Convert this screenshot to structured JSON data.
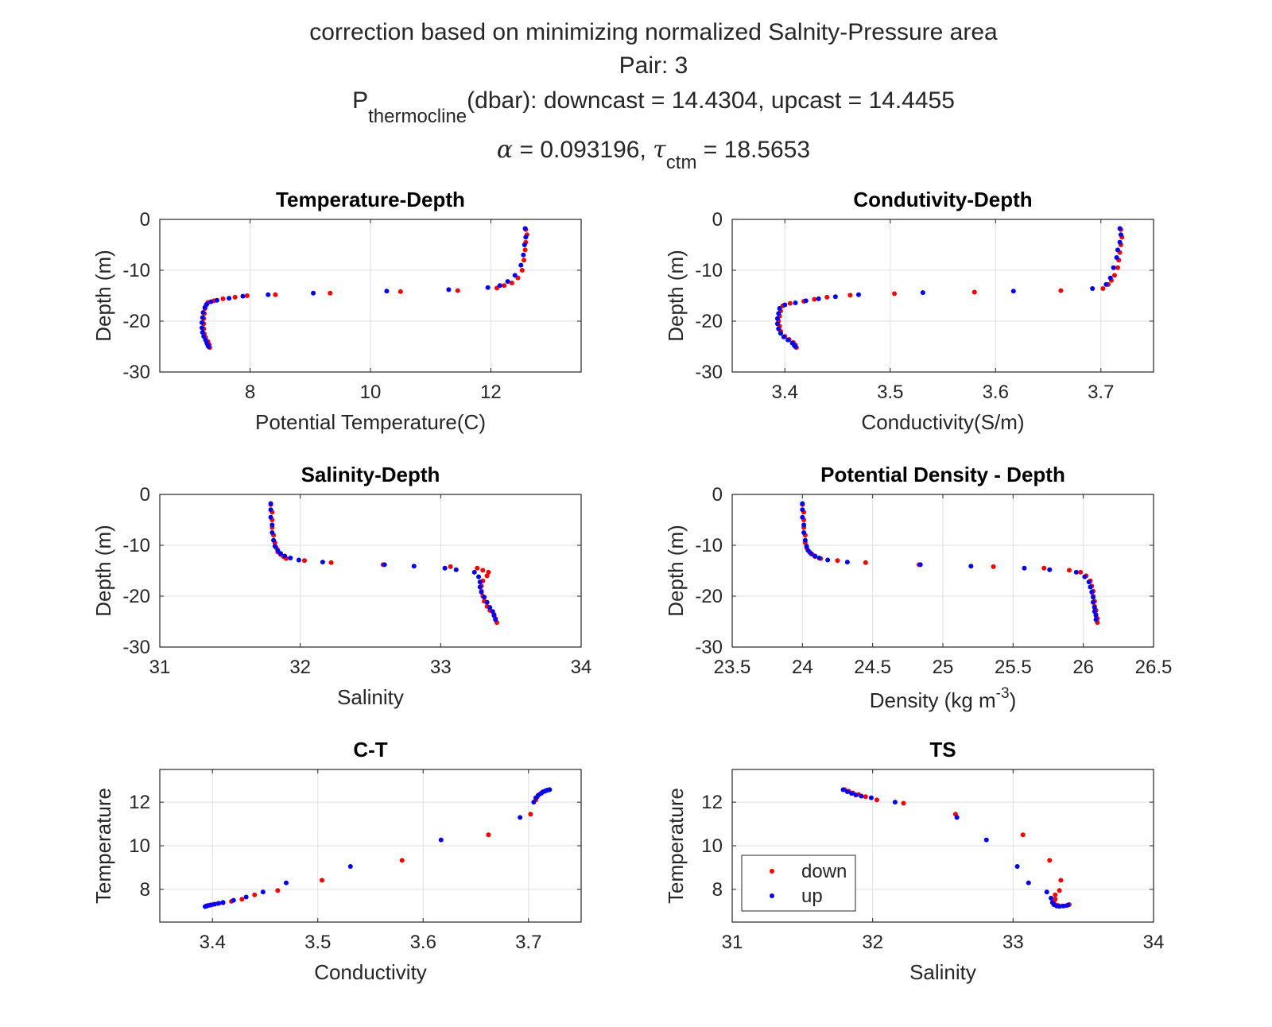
{
  "figure": {
    "title_line1": "correction based on minimizing normalized Salnity-Pressure area",
    "title_line2": "Pair: 3",
    "title_line3": {
      "p": "P",
      "sub": "thermocline",
      "rest": "(dbar): downcast = 14.4304, upcast = 14.4455"
    },
    "title_line4": {
      "alpha": "α",
      "alpha_rest": " = 0.093196, ",
      "tau": "τ",
      "tau_sub": "ctm",
      "tau_rest": " = 18.5653"
    }
  },
  "colors": {
    "down": "#ff0000",
    "up": "#0000ff",
    "grid": "#dfdfdf",
    "axis": "#262626"
  },
  "chart_data": [
    {
      "id": "temp",
      "type": "scatter",
      "title": "Temperature-Depth",
      "xlabel": "Potential Temperature(C)",
      "ylabel": "Depth (m)",
      "xlim": [
        6.5,
        13.5
      ],
      "ylim": [
        -30,
        0
      ],
      "xticks": [
        8,
        10,
        12
      ],
      "xticklabels": [
        "8",
        "10",
        "12"
      ],
      "yticks": [
        -30,
        -20,
        -10,
        0
      ],
      "yticklabels": [
        "-30",
        "-20",
        "-10",
        "0"
      ],
      "series": [
        {
          "name": "down",
          "x": [
            12.58,
            12.6,
            12.58,
            12.57,
            12.55,
            12.52,
            12.45,
            12.35,
            12.22,
            12.1,
            11.45,
            10.5,
            9.33,
            8.42,
            7.95,
            7.75,
            7.55,
            7.4,
            7.3,
            7.27,
            7.25,
            7.24,
            7.23,
            7.23,
            7.23,
            7.24,
            7.26,
            7.3,
            7.32,
            7.33
          ],
          "y": [
            -2,
            -3,
            -4.5,
            -6,
            -8,
            -10,
            -11.5,
            -12.5,
            -13,
            -13.5,
            -14,
            -14.2,
            -14.5,
            -14.8,
            -15,
            -15.3,
            -15.6,
            -16,
            -16.3,
            -16.8,
            -17.5,
            -18.5,
            -19.5,
            -20.5,
            -21.5,
            -22.5,
            -23.2,
            -24,
            -24.6,
            -25.2
          ]
        },
        {
          "name": "up",
          "x": [
            12.57,
            12.58,
            12.56,
            12.54,
            12.5,
            12.4,
            12.28,
            12.15,
            11.95,
            11.3,
            10.27,
            9.05,
            8.3,
            7.88,
            7.65,
            7.45,
            7.35,
            7.28,
            7.25,
            7.22,
            7.21,
            7.2,
            7.2,
            7.21,
            7.23,
            7.26,
            7.28,
            7.3,
            7.31
          ],
          "y": [
            -1.8,
            -3.5,
            -5,
            -7,
            -9,
            -11,
            -12.2,
            -13,
            -13.4,
            -13.8,
            -14.1,
            -14.5,
            -14.8,
            -15.1,
            -15.5,
            -15.9,
            -16.2,
            -16.7,
            -17.3,
            -18.3,
            -19.3,
            -20.3,
            -21.3,
            -22.2,
            -23,
            -23.7,
            -24.3,
            -24.8,
            -25
          ]
        }
      ]
    },
    {
      "id": "cond",
      "type": "scatter",
      "title": "Condutivity-Depth",
      "xlabel": "Conductivity(S/m)",
      "ylabel": "Depth (m)",
      "xlim": [
        3.35,
        3.75
      ],
      "ylim": [
        -30,
        0
      ],
      "xticks": [
        3.4,
        3.5,
        3.6,
        3.7
      ],
      "xticklabels": [
        "3.4",
        "3.5",
        "3.6",
        "3.7"
      ],
      "yticks": [
        -30,
        -20,
        -10,
        0
      ],
      "yticklabels": [
        "-30",
        "-20",
        "-10",
        "0"
      ],
      "series": [
        {
          "name": "down",
          "x": [
            3.719,
            3.72,
            3.719,
            3.718,
            3.717,
            3.716,
            3.713,
            3.71,
            3.707,
            3.702,
            3.662,
            3.58,
            3.504,
            3.462,
            3.44,
            3.428,
            3.418,
            3.405,
            3.398,
            3.396,
            3.395,
            3.394,
            3.395,
            3.396,
            3.4,
            3.404,
            3.408,
            3.41,
            3.411
          ],
          "y": [
            -2,
            -3.5,
            -5,
            -6.5,
            -8,
            -9.5,
            -11,
            -12,
            -12.8,
            -13.6,
            -14,
            -14.3,
            -14.6,
            -14.9,
            -15.3,
            -15.7,
            -16.1,
            -16.5,
            -17,
            -18,
            -19,
            -20,
            -21,
            -22,
            -23,
            -23.6,
            -24.2,
            -24.7,
            -25.2
          ]
        },
        {
          "name": "up",
          "x": [
            3.718,
            3.719,
            3.718,
            3.716,
            3.715,
            3.712,
            3.709,
            3.705,
            3.692,
            3.617,
            3.531,
            3.47,
            3.448,
            3.432,
            3.42,
            3.41,
            3.4,
            3.395,
            3.394,
            3.393,
            3.393,
            3.394,
            3.396,
            3.399,
            3.403,
            3.407,
            3.409,
            3.41
          ],
          "y": [
            -1.8,
            -3,
            -4.5,
            -6,
            -7.5,
            -9.5,
            -11.5,
            -12.8,
            -13.6,
            -14.1,
            -14.4,
            -14.8,
            -15.2,
            -15.6,
            -16,
            -16.4,
            -16.8,
            -17.5,
            -18.5,
            -19.5,
            -20.5,
            -21.5,
            -22.4,
            -23.1,
            -23.7,
            -24.3,
            -24.8,
            -25
          ]
        }
      ]
    },
    {
      "id": "sal",
      "type": "scatter",
      "title": "Salinity-Depth",
      "xlabel": "Salinity",
      "ylabel": "Depth (m)",
      "xlim": [
        31,
        34
      ],
      "ylim": [
        -30,
        0
      ],
      "xticks": [
        31,
        32,
        33,
        34
      ],
      "xticklabels": [
        "31",
        "32",
        "33",
        "34"
      ],
      "yticks": [
        -30,
        -20,
        -10,
        0
      ],
      "yticklabels": [
        "-30",
        "-20",
        "-10",
        "0"
      ],
      "series": [
        {
          "name": "down",
          "x": [
            31.79,
            31.8,
            31.8,
            31.8,
            31.81,
            31.82,
            31.83,
            31.84,
            31.86,
            31.88,
            31.9,
            32.03,
            32.22,
            32.59,
            33.07,
            33.26,
            33.3,
            33.34,
            33.33,
            33.3,
            33.29,
            33.29,
            33.3,
            33.31,
            33.33,
            33.35,
            33.38,
            33.39,
            33.4
          ],
          "y": [
            -2,
            -3.5,
            -5,
            -6.5,
            -8,
            -9.5,
            -10.5,
            -11.3,
            -11.8,
            -12.2,
            -12.6,
            -13,
            -13.4,
            -13.8,
            -14.2,
            -14.5,
            -14.9,
            -15.3,
            -16,
            -17,
            -18,
            -19,
            -20,
            -21,
            -22,
            -22.8,
            -23.6,
            -24.4,
            -25.2
          ]
        },
        {
          "name": "up",
          "x": [
            31.79,
            31.79,
            31.79,
            31.8,
            31.8,
            31.81,
            31.82,
            31.84,
            31.86,
            31.89,
            31.93,
            31.99,
            32.16,
            32.6,
            32.81,
            33.03,
            33.11,
            33.24,
            33.27,
            33.28,
            33.28,
            33.29,
            33.31,
            33.33,
            33.35,
            33.37,
            33.38,
            33.39
          ],
          "y": [
            -1.8,
            -3,
            -4.5,
            -6,
            -7.5,
            -9,
            -10.2,
            -11,
            -11.6,
            -12.1,
            -12.5,
            -12.9,
            -13.3,
            -13.8,
            -14.1,
            -14.5,
            -14.8,
            -15.3,
            -16.2,
            -17.2,
            -18.2,
            -19.2,
            -20.2,
            -21.2,
            -22.2,
            -23,
            -23.8,
            -24.6
          ]
        }
      ]
    },
    {
      "id": "dens",
      "type": "scatter",
      "title": "Potential Density - Depth",
      "xlabel_main": "Density (kg m",
      "xlabel_sup": "-3",
      "xlabel_end": ")",
      "ylabel": "Depth (m)",
      "xlim": [
        23.5,
        26.5
      ],
      "ylim": [
        -30,
        0
      ],
      "xticks": [
        23.5,
        24,
        24.5,
        25,
        25.5,
        26,
        26.5
      ],
      "xticklabels": [
        "23.5",
        "24",
        "24.5",
        "25",
        "25.5",
        "26",
        "26.5"
      ],
      "yticks": [
        -30,
        -20,
        -10,
        0
      ],
      "yticklabels": [
        "-30",
        "-20",
        "-10",
        "0"
      ],
      "series": [
        {
          "name": "down",
          "x": [
            24,
            24.01,
            24.01,
            24.01,
            24.02,
            24.02,
            24.03,
            24.05,
            24.07,
            24.09,
            24.13,
            24.25,
            24.45,
            24.83,
            25.36,
            25.72,
            25.9,
            25.98,
            26.02,
            26.05,
            26.06,
            26.07,
            26.07,
            26.08,
            26.08,
            26.09,
            26.09,
            26.1,
            26.1
          ],
          "y": [
            -2,
            -3.5,
            -5,
            -6.5,
            -8,
            -9.5,
            -10.5,
            -11.3,
            -11.8,
            -12.2,
            -12.6,
            -13,
            -13.4,
            -13.8,
            -14.2,
            -14.5,
            -14.9,
            -15.3,
            -16,
            -17,
            -18,
            -19,
            -20,
            -21,
            -22,
            -22.8,
            -23.6,
            -24.4,
            -25.2
          ]
        },
        {
          "name": "up",
          "x": [
            24,
            24,
            24,
            24.01,
            24.01,
            24.02,
            24.03,
            24.04,
            24.06,
            24.09,
            24.12,
            24.18,
            24.32,
            24.84,
            25.2,
            25.58,
            25.76,
            25.95,
            26.01,
            26.04,
            26.05,
            26.06,
            26.07,
            26.07,
            26.08,
            26.08,
            26.09,
            26.09
          ],
          "y": [
            -1.8,
            -3,
            -4.5,
            -6,
            -7.5,
            -9,
            -10.2,
            -11,
            -11.6,
            -12.1,
            -12.5,
            -12.9,
            -13.3,
            -13.8,
            -14.1,
            -14.5,
            -14.8,
            -15.3,
            -16.2,
            -17.2,
            -18.2,
            -19.2,
            -20.2,
            -21.2,
            -22.2,
            -23,
            -23.8,
            -24.6
          ]
        }
      ]
    },
    {
      "id": "ct",
      "type": "scatter",
      "title": "C-T",
      "xlabel": "Conductivity",
      "ylabel": "Temperature",
      "xlim": [
        3.35,
        3.75
      ],
      "ylim": [
        6.5,
        13.5
      ],
      "xticks": [
        3.4,
        3.5,
        3.6,
        3.7
      ],
      "xticklabels": [
        "3.4",
        "3.5",
        "3.6",
        "3.7"
      ],
      "yticks": [
        8,
        10,
        12
      ],
      "yticklabels": [
        "8",
        "10",
        "12"
      ],
      "series": [
        {
          "name": "down",
          "x": [
            3.72,
            3.718,
            3.716,
            3.713,
            3.71,
            3.708,
            3.707,
            3.702,
            3.662,
            3.58,
            3.504,
            3.462,
            3.44,
            3.428,
            3.418,
            3.41,
            3.405,
            3.4,
            3.398,
            3.396,
            3.395
          ],
          "y": [
            12.58,
            12.55,
            12.5,
            12.45,
            12.35,
            12.22,
            12.1,
            11.45,
            10.5,
            9.33,
            8.42,
            7.95,
            7.75,
            7.55,
            7.45,
            7.38,
            7.35,
            7.3,
            7.28,
            7.26,
            7.24
          ]
        },
        {
          "name": "up",
          "x": [
            3.72,
            3.718,
            3.716,
            3.714,
            3.712,
            3.709,
            3.707,
            3.705,
            3.692,
            3.617,
            3.531,
            3.47,
            3.448,
            3.432,
            3.42,
            3.41,
            3.406,
            3.402,
            3.398,
            3.395,
            3.394,
            3.393
          ],
          "y": [
            12.57,
            12.55,
            12.52,
            12.48,
            12.4,
            12.3,
            12.2,
            12.0,
            11.3,
            10.27,
            9.05,
            8.3,
            7.88,
            7.65,
            7.5,
            7.4,
            7.36,
            7.32,
            7.28,
            7.25,
            7.23,
            7.21
          ]
        }
      ]
    },
    {
      "id": "ts",
      "type": "scatter",
      "title": "TS",
      "xlabel": "Salinity",
      "ylabel": "Temperature",
      "xlim": [
        31,
        34
      ],
      "ylim": [
        6.5,
        13.5
      ],
      "xticks": [
        31,
        32,
        33,
        34
      ],
      "xticklabels": [
        "31",
        "32",
        "33",
        "34"
      ],
      "yticks": [
        8,
        10,
        12
      ],
      "yticklabels": [
        "8",
        "10",
        "12"
      ],
      "legend": {
        "position": "southwest",
        "entries": [
          "down",
          "up"
        ]
      },
      "series": [
        {
          "name": "down",
          "x": [
            31.8,
            31.83,
            31.86,
            31.9,
            31.95,
            32.03,
            32.22,
            32.59,
            33.07,
            33.26,
            33.34,
            33.33,
            33.3,
            33.3,
            33.29,
            33.3,
            33.32,
            33.35,
            33.38,
            33.4
          ],
          "y": [
            12.58,
            12.5,
            12.42,
            12.35,
            12.25,
            12.1,
            11.95,
            11.45,
            10.5,
            9.33,
            8.42,
            7.95,
            7.75,
            7.55,
            7.4,
            7.3,
            7.26,
            7.24,
            7.25,
            7.3
          ]
        },
        {
          "name": "up",
          "x": [
            31.79,
            31.82,
            31.85,
            31.88,
            31.92,
            31.99,
            32.16,
            32.6,
            32.81,
            33.03,
            33.11,
            33.24,
            33.27,
            33.28,
            33.29,
            33.31,
            33.33,
            33.36,
            33.39
          ],
          "y": [
            12.57,
            12.48,
            12.4,
            12.33,
            12.28,
            12.2,
            12.0,
            11.3,
            10.27,
            9.05,
            8.3,
            7.88,
            7.6,
            7.4,
            7.3,
            7.24,
            7.22,
            7.24,
            7.28
          ]
        }
      ]
    }
  ]
}
